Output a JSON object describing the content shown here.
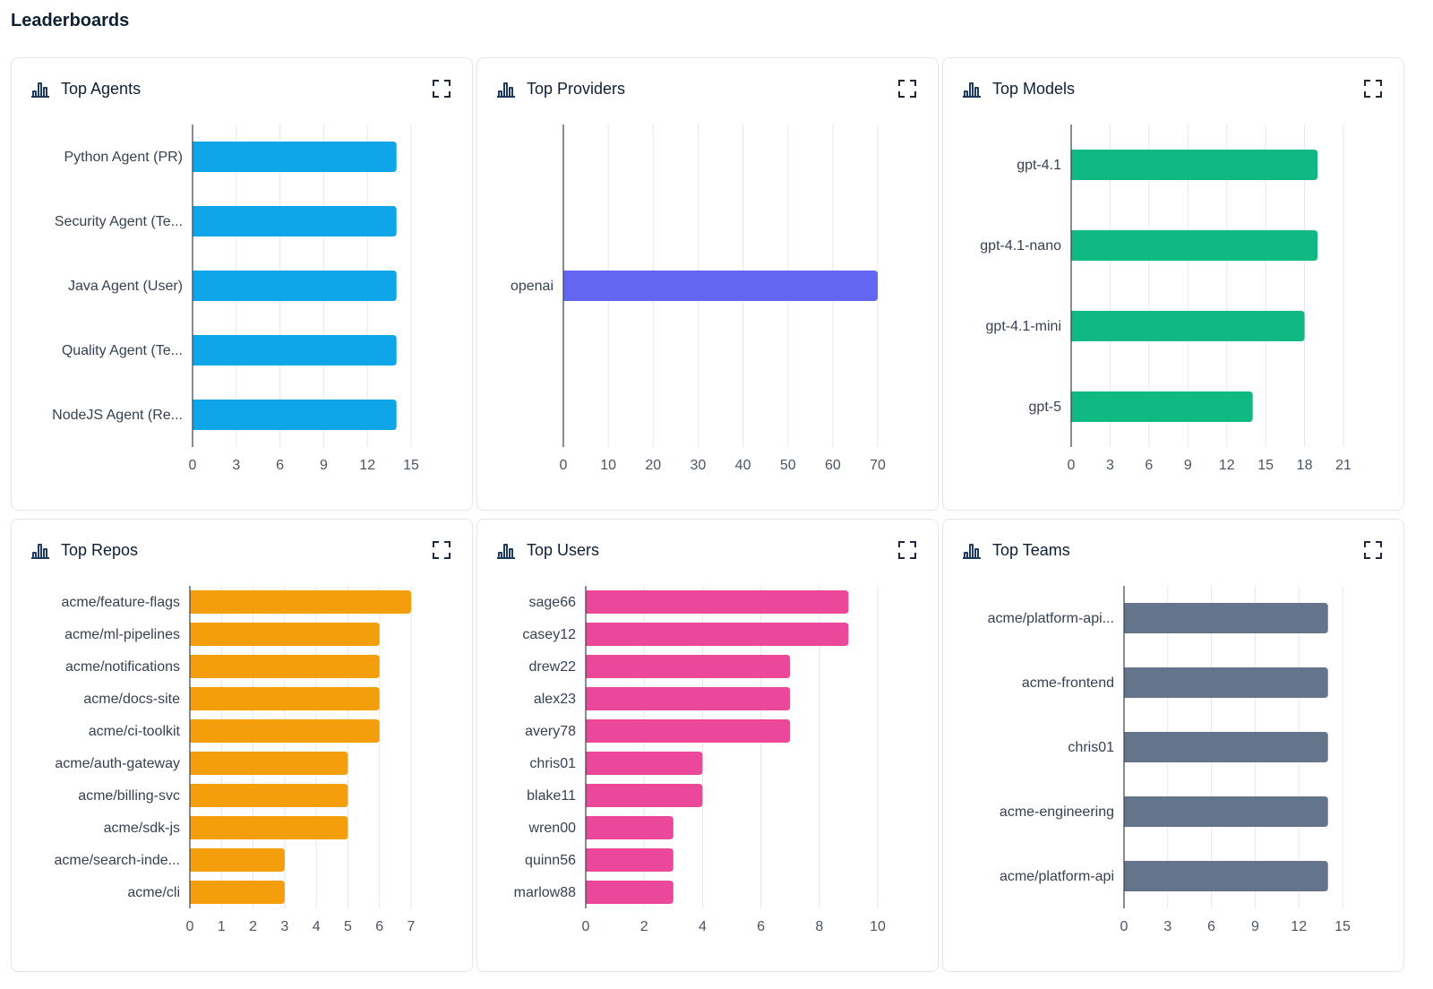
{
  "page": {
    "title": "Leaderboards"
  },
  "cards": [
    {
      "title": "Top Agents",
      "icon": "bar-chart-icon",
      "expand_icon": "expand-icon",
      "chart_data": {
        "type": "bar",
        "orientation": "horizontal",
        "color": "#0ea5e9",
        "categories": [
          "Python Agent (PR)",
          "Security Agent (Te...",
          "Java Agent (User)",
          "Quality Agent (Te...",
          "NodeJS Agent (Re..."
        ],
        "values": [
          14,
          14,
          14,
          14,
          14
        ],
        "xlim": [
          0,
          15
        ],
        "xticks": [
          0,
          3,
          6,
          9,
          12,
          15
        ],
        "grid": true
      }
    },
    {
      "title": "Top Providers",
      "icon": "bar-chart-icon",
      "expand_icon": "expand-icon",
      "chart_data": {
        "type": "bar",
        "orientation": "horizontal",
        "color": "#6366f1",
        "categories": [
          "openai"
        ],
        "values": [
          70
        ],
        "xlim": [
          0,
          70
        ],
        "xticks": [
          0,
          10,
          20,
          30,
          40,
          50,
          60,
          70
        ],
        "grid": true
      }
    },
    {
      "title": "Top Models",
      "icon": "bar-chart-icon",
      "expand_icon": "expand-icon",
      "chart_data": {
        "type": "bar",
        "orientation": "horizontal",
        "color": "#10b981",
        "categories": [
          "gpt-4.1",
          "gpt-4.1-nano",
          "gpt-4.1-mini",
          "gpt-5"
        ],
        "values": [
          19,
          19,
          18,
          14
        ],
        "xlim": [
          0,
          21
        ],
        "xticks": [
          0,
          3,
          6,
          9,
          12,
          15,
          18,
          21
        ],
        "grid": true
      }
    },
    {
      "title": "Top Repos",
      "icon": "bar-chart-icon",
      "expand_icon": "expand-icon",
      "chart_data": {
        "type": "bar",
        "orientation": "horizontal",
        "color": "#f59e0b",
        "categories": [
          "acme/feature-flags",
          "acme/ml-pipelines",
          "acme/notifications",
          "acme/docs-site",
          "acme/ci-toolkit",
          "acme/auth-gateway",
          "acme/billing-svc",
          "acme/sdk-js",
          "acme/search-inde...",
          "acme/cli"
        ],
        "values": [
          7,
          6,
          6,
          6,
          6,
          5,
          5,
          5,
          3,
          3
        ],
        "xlim": [
          0,
          7
        ],
        "xticks": [
          0,
          1,
          2,
          3,
          4,
          5,
          6,
          7
        ],
        "grid": true
      }
    },
    {
      "title": "Top Users",
      "icon": "bar-chart-icon",
      "expand_icon": "expand-icon",
      "chart_data": {
        "type": "bar",
        "orientation": "horizontal",
        "color": "#ec4899",
        "categories": [
          "sage66",
          "casey12",
          "drew22",
          "alex23",
          "avery78",
          "chris01",
          "blake11",
          "wren00",
          "quinn56",
          "marlow88"
        ],
        "values": [
          9,
          9,
          7,
          7,
          7,
          4,
          4,
          3,
          3,
          3
        ],
        "xlim": [
          0,
          10
        ],
        "xticks": [
          0,
          2,
          4,
          6,
          8,
          10
        ],
        "grid": true
      }
    },
    {
      "title": "Top Teams",
      "icon": "bar-chart-icon",
      "expand_icon": "expand-icon",
      "chart_data": {
        "type": "bar",
        "orientation": "horizontal",
        "color": "#64748b",
        "categories": [
          "acme/platform-api...",
          "acme-frontend",
          "chris01",
          "acme-engineering",
          "acme/platform-api"
        ],
        "values": [
          14,
          14,
          14,
          14,
          14
        ],
        "xlim": [
          0,
          15
        ],
        "xticks": [
          0,
          3,
          6,
          9,
          12,
          15
        ],
        "grid": true
      }
    }
  ]
}
